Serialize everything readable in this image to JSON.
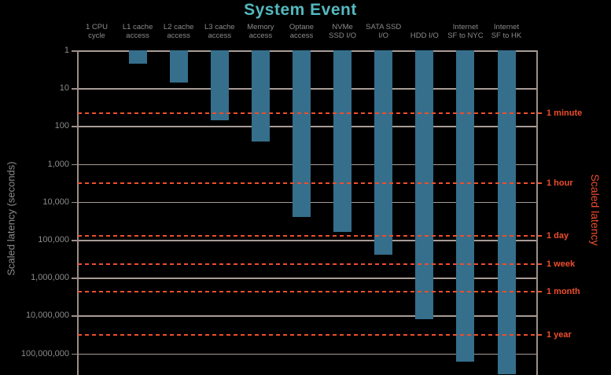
{
  "title": "System Event",
  "axes": {
    "left_title": "Scaled latency (seconds)",
    "right_title": "Scaled latency"
  },
  "colors": {
    "background": "#000000",
    "bar": "#356f8c",
    "title_teal": "#54b9bf",
    "gridline": "#a89c96",
    "spine": "#9b8e88",
    "gray_text": "#8b8b8b",
    "accent_red": "#ee4e2d"
  },
  "chart_data": {
    "type": "bar",
    "title": "System Event",
    "xlabel": "",
    "ylabel_left": "Scaled latency (seconds)",
    "ylabel_right": "Scaled latency",
    "y_scale": "log",
    "y_direction": "values increase downward; bars hang down from 1 at the top axis",
    "ylim": [
      1,
      100000000
    ],
    "y_tick_labels": [
      "1",
      "10",
      "100",
      "1,000",
      "10,000",
      "100,000",
      "1,000,000",
      "10,000,000",
      "100,000,000"
    ],
    "y_tick_values": [
      1,
      10,
      100,
      1000,
      10000,
      100000,
      1000000,
      10000000,
      100000000
    ],
    "grid": true,
    "legend_position": "none",
    "categories": [
      [
        "1 CPU",
        "cycle"
      ],
      [
        "L1 cache",
        "access"
      ],
      [
        "L2 cache",
        "access"
      ],
      [
        "L3 cache",
        "access"
      ],
      [
        "Memory",
        "access"
      ],
      [
        "Optane",
        "access"
      ],
      [
        "NVMe",
        "SSD I/O"
      ],
      [
        "SATA SSD",
        "I/O"
      ],
      [
        "",
        "HDD I/O"
      ],
      [
        "Internet",
        "SF to NYC"
      ],
      [
        "Internet",
        "SF to HK"
      ]
    ],
    "values_scaled_seconds": [
      1,
      2.25,
      7,
      70,
      250,
      25000,
      62500,
      250000,
      12500000,
      162500000,
      352500000
    ],
    "ref_lines": [
      {
        "label": "1 minute",
        "seconds": 60
      },
      {
        "label": "1 hour",
        "seconds": 3600
      },
      {
        "label": "1 day",
        "seconds": 86400
      },
      {
        "label": "1 week",
        "seconds": 604800
      },
      {
        "label": "1 month",
        "seconds": 2592000
      },
      {
        "label": "1 year",
        "seconds": 31536000
      }
    ]
  }
}
